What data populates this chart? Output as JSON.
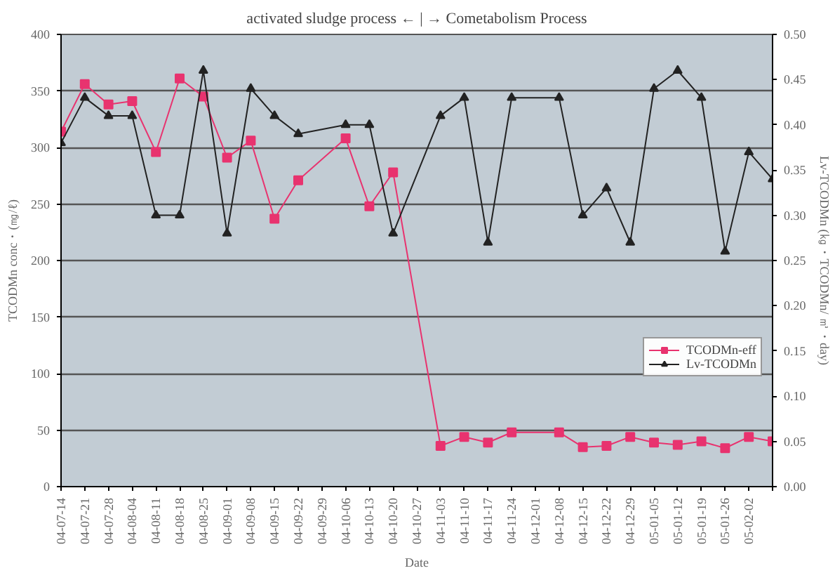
{
  "chart_data": {
    "type": "line",
    "title": "activated sludge process ← | → Cometabolism Process",
    "xlabel": "Date",
    "ylabel": "TCODMn conc・(㎎/ℓ)",
    "y2label": "Lv-TCODMn (㎏・TCODMn/ ㎥・day)",
    "categories": [
      "04-07-14",
      "04-07-21",
      "04-07-28",
      "04-08-04",
      "04-08-11",
      "04-08-18",
      "04-08-25",
      "04-09-01",
      "04-09-08",
      "04-09-15",
      "04-09-22",
      "04-09-29",
      "04-10-06",
      "04-10-13",
      "04-10-20",
      "04-10-27",
      "04-11-03",
      "04-11-10",
      "04-11-17",
      "04-11-24",
      "04-12-01",
      "04-12-08",
      "04-12-15",
      "04-12-22",
      "04-12-29",
      "05-01-05",
      "05-01-12",
      "05-01-19",
      "05-01-26",
      "05-02-02",
      null
    ],
    "series": [
      {
        "name": "TCODMn-eff",
        "color": "#e8336f",
        "marker": "square",
        "values": [
          314,
          356,
          338,
          341,
          296,
          361,
          345,
          291,
          306,
          237,
          271,
          null,
          308,
          248,
          278,
          null,
          36,
          44,
          39,
          48,
          null,
          48,
          35,
          36,
          44,
          39,
          37,
          40,
          34,
          44,
          40
        ]
      },
      {
        "name": "Lv-TCODMn",
        "color": "#222222",
        "marker": "triangle",
        "axis": "y2",
        "values": [
          0.38,
          0.43,
          0.41,
          0.41,
          0.3,
          0.3,
          0.46,
          0.28,
          0.44,
          0.41,
          0.39,
          null,
          0.4,
          0.4,
          0.28,
          null,
          0.41,
          0.43,
          0.27,
          0.43,
          null,
          0.43,
          0.3,
          0.33,
          0.27,
          0.44,
          0.46,
          0.43,
          0.26,
          0.37,
          0.34
        ]
      }
    ],
    "ylim": [
      0,
      400
    ],
    "yticks": [
      0,
      50,
      100,
      150,
      200,
      250,
      300,
      350,
      400
    ],
    "y2lim": [
      0,
      0.5
    ],
    "y2ticks": [
      {
        "value": 0,
        "label": "0.00"
      },
      {
        "value": 0.05,
        "label": "0.05"
      },
      {
        "value": 0.1,
        "label": "0.10"
      },
      {
        "value": 0.15,
        "label": "0.15"
      },
      {
        "value": 0.2,
        "label": "0.20"
      },
      {
        "value": 0.25,
        "label": "0.25"
      },
      {
        "value": 0.3,
        "label": "0.30"
      },
      {
        "value": 0.35,
        "label": "0.35"
      },
      {
        "value": 0.4,
        "label": "0.40"
      },
      {
        "value": 0.45,
        "label": "0.45"
      },
      {
        "value": 0.5,
        "label": "0.50"
      }
    ],
    "grid": "y",
    "legend": "right",
    "line_style": "solid"
  }
}
